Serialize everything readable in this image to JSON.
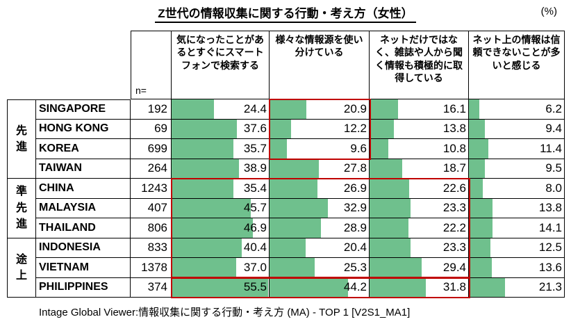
{
  "title": "Z世代の情報収集に関する行動・考え方（女性）",
  "unit_label": "(%)",
  "footer_note": "Intage Global Viewer:情報収集に関する行動・考え方 (MA) - TOP 1 [V2S1_MA1]",
  "colors": {
    "bar_green": "#6fc08d",
    "highlight_red": "#c00000",
    "grid": "#000000"
  },
  "table": {
    "n_label": "n=",
    "column_headers": [
      "気になったことがあるとすぐにスマートフォンで検索する",
      "様々な情報源を使い分けている",
      "ネットだけではなく、雑誌や人から聞く情報も積極的に取得している",
      "ネット上の情報は信頼できないことが多いと感じる"
    ],
    "groups": [
      {
        "label": "先進",
        "span": 4
      },
      {
        "label": "準先進",
        "span": 3
      },
      {
        "label": "途上",
        "span": 3
      }
    ],
    "rows": [
      {
        "country": "SINGAPORE",
        "n": "192",
        "v": [
          "24.4",
          "20.9",
          "16.1",
          "6.2"
        ]
      },
      {
        "country": "HONG KONG",
        "n": "69",
        "v": [
          "37.6",
          "12.2",
          "13.8",
          "9.4"
        ]
      },
      {
        "country": "KOREA",
        "n": "699",
        "v": [
          "35.7",
          "9.6",
          "10.8",
          "11.4"
        ]
      },
      {
        "country": "TAIWAN",
        "n": "264",
        "v": [
          "38.9",
          "27.8",
          "18.7",
          "9.5"
        ]
      },
      {
        "country": "CHINA",
        "n": "1243",
        "v": [
          "35.4",
          "26.9",
          "22.6",
          "8.0"
        ]
      },
      {
        "country": "MALAYSIA",
        "n": "407",
        "v": [
          "45.7",
          "32.9",
          "23.3",
          "13.8"
        ]
      },
      {
        "country": "THAILAND",
        "n": "806",
        "v": [
          "46.9",
          "28.9",
          "22.2",
          "14.1"
        ]
      },
      {
        "country": "INDONESIA",
        "n": "833",
        "v": [
          "40.4",
          "20.4",
          "23.3",
          "12.5"
        ]
      },
      {
        "country": "VIETNAM",
        "n": "1378",
        "v": [
          "37.0",
          "25.3",
          "29.4",
          "13.6"
        ]
      },
      {
        "country": "PHILIPPINES",
        "n": "374",
        "v": [
          "55.5",
          "44.2",
          "31.8",
          "21.3"
        ]
      }
    ]
  },
  "highlights": [
    {
      "area": "column 2 (様々な情報源を使い分けている), rows SINGAPORE–KOREA"
    },
    {
      "area": "columns 1–3, rows CHINA–VIETNAM"
    },
    {
      "area": "columns 1–3, row PHILIPPINES"
    }
  ],
  "chart_data": {
    "type": "bar",
    "orientation": "horizontal",
    "title": "Z世代の情報収集に関する行動・考え方（女性）",
    "unit": "%",
    "xlim": [
      0,
      56
    ],
    "categories": [
      "SINGAPORE",
      "HONG KONG",
      "KOREA",
      "TAIWAN",
      "CHINA",
      "MALAYSIA",
      "THAILAND",
      "INDONESIA",
      "VIETNAM",
      "PHILIPPINES"
    ],
    "n_values": [
      192,
      69,
      699,
      264,
      1243,
      407,
      806,
      833,
      1378,
      374
    ],
    "category_groups": [
      {
        "label": "先進",
        "categories": [
          "SINGAPORE",
          "HONG KONG",
          "KOREA",
          "TAIWAN"
        ]
      },
      {
        "label": "準先進",
        "categories": [
          "CHINA",
          "MALAYSIA",
          "THAILAND"
        ]
      },
      {
        "label": "途上",
        "categories": [
          "INDONESIA",
          "VIETNAM",
          "PHILIPPINES"
        ]
      }
    ],
    "series": [
      {
        "name": "気になったことがあるとすぐにスマートフォンで検索する",
        "values": [
          24.4,
          37.6,
          35.7,
          38.9,
          35.4,
          45.7,
          46.9,
          40.4,
          37.0,
          55.5
        ]
      },
      {
        "name": "様々な情報源を使い分けている",
        "values": [
          20.9,
          12.2,
          9.6,
          27.8,
          26.9,
          32.9,
          28.9,
          20.4,
          25.3,
          44.2
        ]
      },
      {
        "name": "ネットだけではなく、雑誌や人から聞く情報も積極的に取得している",
        "values": [
          16.1,
          13.8,
          10.8,
          18.7,
          22.6,
          23.3,
          22.2,
          23.3,
          29.4,
          31.8
        ]
      },
      {
        "name": "ネット上の情報は信頼できないことが多いと感じる",
        "values": [
          6.2,
          9.4,
          11.4,
          9.5,
          8.0,
          13.8,
          14.1,
          12.5,
          13.6,
          21.3
        ]
      }
    ],
    "source_note": "Intage Global Viewer:情報収集に関する行動・考え方 (MA) - TOP 1 [V2S1_MA1]"
  }
}
